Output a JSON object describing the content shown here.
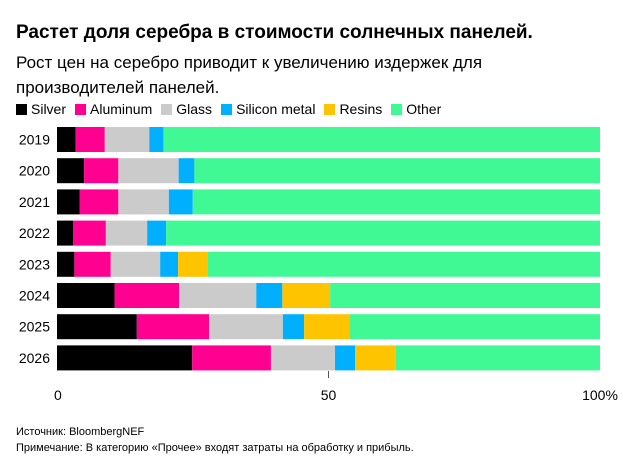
{
  "chart_data": {
    "type": "bar",
    "orientation": "horizontal",
    "stacked": true,
    "title": "Растет доля серебра в стоимости солнечных панелей.",
    "subtitle": "Рост цен на серебро приводит к увеличению издержек для производителей панелей.",
    "categories": [
      "2019",
      "2020",
      "2021",
      "2022",
      "2023",
      "2024",
      "2025",
      "2026"
    ],
    "series": [
      {
        "name": "Silver",
        "color": "#000000",
        "values": [
          3.4,
          5.0,
          4.2,
          3.0,
          3.2,
          10.6,
          14.7,
          24.9
        ]
      },
      {
        "name": "Aluminum",
        "color": "#ff0090",
        "values": [
          5.4,
          6.3,
          7.1,
          6.0,
          6.7,
          11.9,
          13.3,
          14.5
        ]
      },
      {
        "name": "Glass",
        "color": "#cbcbcb",
        "values": [
          8.2,
          11.1,
          9.3,
          7.6,
          9.1,
          14.2,
          13.6,
          11.8
        ]
      },
      {
        "name": "Silicon metal",
        "color": "#00b0ff",
        "values": [
          2.6,
          2.9,
          4.4,
          3.5,
          3.3,
          4.8,
          3.9,
          3.7
        ]
      },
      {
        "name": "Resins",
        "color": "#ffc400",
        "values": [
          0,
          0,
          0,
          0,
          5.5,
          8.8,
          8.3,
          7.5
        ]
      },
      {
        "name": "Other",
        "color": "#40f994",
        "values": [
          80.4,
          74.7,
          75.0,
          79.9,
          72.2,
          49.7,
          46.2,
          37.6
        ]
      }
    ],
    "xlim": [
      0,
      100
    ],
    "xticks": [
      {
        "value": 0,
        "label": "0"
      },
      {
        "value": 50,
        "label": "50"
      },
      {
        "value": 100,
        "label": "100%"
      }
    ],
    "grid": false,
    "legend_position": "top-left"
  },
  "footer": {
    "source": "Источник: BloombergNEF",
    "note": "Примечание: В категорию «Прочее» входят затраты на обработку и прибыль."
  }
}
